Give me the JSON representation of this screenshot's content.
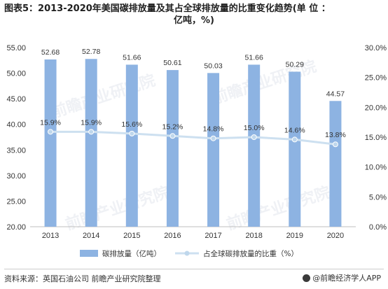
{
  "title_line1": "图表5：2013-2020年美国碳排放量及其占全球排放量的比重变化趋势(单 位 ：",
  "title_line2": "亿吨，%)",
  "source": "资料来源：英国石油公司 前瞻产业研究院整理",
  "brand": "@前瞻经济学人APP",
  "watermark": "前瞻产业研究院",
  "colors": {
    "bar": "#8db3e2",
    "line": "#cde0f0",
    "point": "#bfd7ec"
  },
  "chart_data": {
    "type": "bar",
    "categories": [
      "2013",
      "2014",
      "2015",
      "2016",
      "2017",
      "2018",
      "2019",
      "2020"
    ],
    "series": [
      {
        "name": "碳排放量（亿吨）",
        "type": "bar",
        "axis": "left",
        "values": [
          52.68,
          52.78,
          51.66,
          50.61,
          50.03,
          51.66,
          50.29,
          44.57
        ],
        "labels": [
          "52.68",
          "52.78",
          "51.66",
          "50.61",
          "50.03",
          "51.66",
          "50.29",
          "44.57"
        ]
      },
      {
        "name": "占全球碳排放量的比重（%）",
        "type": "line",
        "axis": "right",
        "values": [
          15.9,
          15.9,
          15.6,
          15.2,
          14.8,
          15.0,
          14.6,
          13.8
        ],
        "labels": [
          "15.9%",
          "15.9%",
          "15.6%",
          "15.2%",
          "14.8%",
          "15.0%",
          "14.6%",
          "13.8%"
        ]
      }
    ],
    "y_left": {
      "min": 20,
      "max": 55,
      "ticks": [
        20,
        25,
        30,
        35,
        40,
        45,
        50,
        55
      ],
      "tick_labels": [
        "20.00",
        "25.00",
        "30.00",
        "35.00",
        "40.00",
        "45.00",
        "50.00",
        "55.00"
      ]
    },
    "y_right": {
      "min": 0,
      "max": 30,
      "ticks": [
        0,
        5,
        10,
        15,
        20,
        25,
        30
      ],
      "tick_labels": [
        "0.0%",
        "5.0%",
        "10.0%",
        "15.0%",
        "20.0%",
        "25.0%",
        "30.0%"
      ]
    },
    "grid": false,
    "legend_position": "bottom"
  }
}
